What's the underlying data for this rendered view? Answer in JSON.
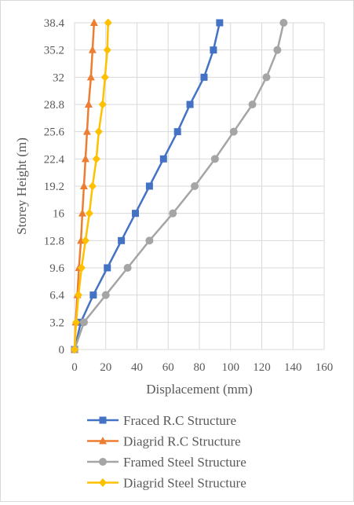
{
  "chart_data": {
    "type": "line",
    "xlabel": "Displacement (mm)",
    "ylabel": "Storey Height (m)",
    "xlim": [
      0,
      160
    ],
    "ylim": [
      0,
      38.4
    ],
    "x_ticks": [
      "0",
      "20",
      "40",
      "60",
      "80",
      "100",
      "120",
      "140",
      "160"
    ],
    "y_ticks": [
      "0",
      "3.2",
      "6.4",
      "9.6",
      "12.8",
      "16",
      "19.2",
      "22.4",
      "25.6",
      "28.8",
      "32",
      "35.2",
      "38.4"
    ],
    "y_tick_values": [
      0,
      3.2,
      6.4,
      9.6,
      12.8,
      16,
      19.2,
      22.4,
      25.6,
      28.8,
      32,
      35.2,
      38.4
    ],
    "grid": true,
    "legend_position": "bottom",
    "series": [
      {
        "name": "Fraced R.C Structure",
        "color": "#4472c4",
        "marker": "square",
        "x": [
          0,
          4,
          12,
          21,
          30,
          39,
          48,
          57,
          66,
          74,
          83,
          89,
          93
        ],
        "y": [
          0,
          3.2,
          6.4,
          9.6,
          12.8,
          16,
          19.2,
          22.4,
          25.6,
          28.8,
          32,
          35.2,
          38.4
        ]
      },
      {
        "name": "Diagrid R.C Structure",
        "color": "#ed7d31",
        "marker": "triangle",
        "x": [
          0,
          0.7,
          1.8,
          2.8,
          4.1,
          5,
          6,
          7,
          8,
          9,
          10.5,
          11.5,
          12.5
        ],
        "y": [
          0,
          3.2,
          6.4,
          9.6,
          12.8,
          16,
          19.2,
          22.4,
          25.6,
          28.8,
          32,
          35.2,
          38.4
        ]
      },
      {
        "name": "Framed Steel Structure",
        "color": "#a5a5a5",
        "marker": "circle",
        "x": [
          0,
          6,
          20,
          34,
          48,
          63,
          77,
          90,
          102,
          114,
          123,
          130,
          134
        ],
        "y": [
          0,
          3.2,
          6.4,
          9.6,
          12.8,
          16,
          19.2,
          22.4,
          25.6,
          28.8,
          32,
          35.2,
          38.4
        ]
      },
      {
        "name": "Diagrid Steel Structure",
        "color": "#ffc000",
        "marker": "diamond",
        "x": [
          0,
          1,
          2.5,
          4.5,
          7,
          9.5,
          11.5,
          14,
          15.5,
          18,
          19.5,
          21,
          21.5
        ],
        "y": [
          0,
          3.2,
          6.4,
          9.6,
          12.8,
          16,
          19.2,
          22.4,
          25.6,
          28.8,
          32,
          35.2,
          38.4
        ]
      }
    ]
  }
}
